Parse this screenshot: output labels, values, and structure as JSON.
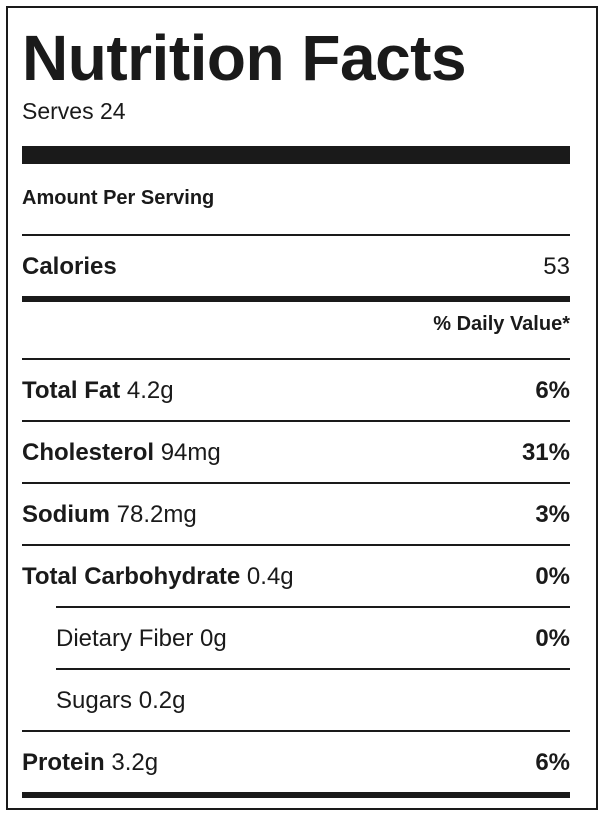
{
  "label": {
    "title": "Nutrition Facts",
    "serves": "Serves 24",
    "amount_per_serving": "Amount Per Serving",
    "calories_label": "Calories",
    "calories_value": "53",
    "daily_value_header": "% Daily Value*",
    "nutrients": [
      {
        "name": "Total Fat",
        "amount": "4.2g",
        "daily_value": "6%"
      },
      {
        "name": "Cholesterol",
        "amount": "94mg",
        "daily_value": "31%"
      },
      {
        "name": "Sodium",
        "amount": "78.2mg",
        "daily_value": "3%"
      },
      {
        "name": "Total Carbohydrate",
        "amount": "0.4g",
        "daily_value": "0%"
      },
      {
        "name": "Dietary Fiber",
        "amount": "0g",
        "daily_value": "0%"
      },
      {
        "name": "Sugars",
        "amount": "0.2g",
        "daily_value": ""
      },
      {
        "name": "Protein",
        "amount": "3.2g",
        "daily_value": "6%"
      }
    ]
  }
}
